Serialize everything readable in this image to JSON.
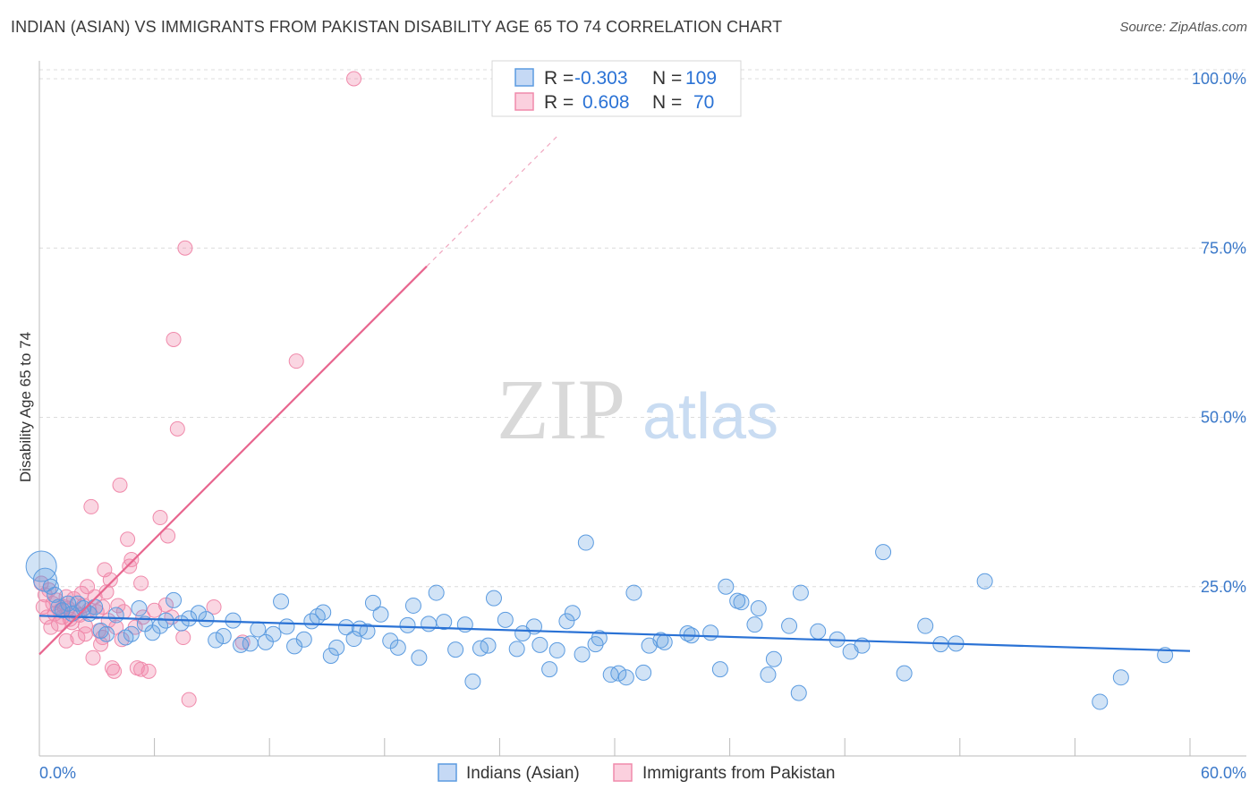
{
  "title": "INDIAN (ASIAN) VS IMMIGRANTS FROM PAKISTAN DISABILITY AGE 65 TO 74 CORRELATION CHART",
  "source": "Source: ZipAtlas.com",
  "watermark": {
    "zip": "ZIP",
    "atlas": "atlas"
  },
  "colors": {
    "blue": "#5b9be0",
    "blue_line": "#2a72d5",
    "pink": "#f08aab",
    "pink_line": "#e8668f",
    "axis_text": "#3a78c9"
  },
  "legend": {
    "rows": [
      {
        "r_label": "R = ",
        "r_value": "-0.303",
        "n_label": "N = ",
        "n_value": "109"
      },
      {
        "r_label": "R = ",
        "r_value": "0.608",
        "n_label": "N = ",
        "n_value": "70"
      }
    ]
  },
  "chart_data": {
    "type": "scatter",
    "title": "INDIAN (ASIAN) VS IMMIGRANTS FROM PAKISTAN DISABILITY AGE 65 TO 74 CORRELATION CHART",
    "xlabel": "",
    "ylabel": "Disability Age 65 to 74",
    "xlim": [
      0,
      60
    ],
    "ylim": [
      0,
      100
    ],
    "x_tick_labels": [
      "0.0%",
      "60.0%"
    ],
    "y_ticks": [
      25,
      50,
      75,
      100
    ],
    "y_tick_labels": [
      "25.0%",
      "50.0%",
      "75.0%",
      "100.0%"
    ],
    "grid": true,
    "series": [
      {
        "name": "Indians (Asian)",
        "color": "#5b9be0",
        "r": -0.303,
        "n": 109,
        "trend": {
          "x0": 0,
          "y0": 20.7,
          "x1": 60,
          "y1": 15.5
        },
        "points": [
          [
            0.1,
            28.0
          ],
          [
            0.3,
            26.0
          ],
          [
            0.6,
            25.0
          ],
          [
            0.8,
            23.8
          ],
          [
            1.0,
            22.0
          ],
          [
            1.2,
            21.5
          ],
          [
            1.5,
            22.5
          ],
          [
            1.7,
            21.0
          ],
          [
            2.0,
            22.5
          ],
          [
            2.3,
            21.8
          ],
          [
            2.6,
            21.0
          ],
          [
            2.9,
            22.0
          ],
          [
            3.2,
            18.5
          ],
          [
            3.5,
            18.0
          ],
          [
            4.0,
            20.8
          ],
          [
            4.5,
            17.5
          ],
          [
            4.8,
            18.0
          ],
          [
            5.2,
            21.8
          ],
          [
            5.5,
            19.5
          ],
          [
            5.9,
            18.2
          ],
          [
            6.3,
            19.2
          ],
          [
            6.6,
            20.0
          ],
          [
            7.0,
            23.0
          ],
          [
            7.4,
            19.6
          ],
          [
            7.8,
            20.3
          ],
          [
            8.3,
            21.1
          ],
          [
            8.7,
            20.2
          ],
          [
            9.2,
            17.1
          ],
          [
            9.6,
            17.7
          ],
          [
            10.1,
            20.0
          ],
          [
            10.5,
            16.4
          ],
          [
            11.0,
            16.6
          ],
          [
            11.4,
            18.7
          ],
          [
            11.8,
            16.8
          ],
          [
            12.2,
            18.0
          ],
          [
            12.6,
            22.8
          ],
          [
            12.9,
            19.1
          ],
          [
            13.3,
            16.2
          ],
          [
            13.8,
            17.2
          ],
          [
            14.2,
            19.9
          ],
          [
            14.5,
            20.6
          ],
          [
            14.8,
            21.2
          ],
          [
            15.2,
            14.8
          ],
          [
            15.5,
            16.0
          ],
          [
            16.0,
            19.0
          ],
          [
            16.4,
            17.3
          ],
          [
            16.7,
            18.8
          ],
          [
            17.1,
            18.4
          ],
          [
            17.4,
            22.6
          ],
          [
            17.8,
            20.9
          ],
          [
            18.3,
            17.0
          ],
          [
            18.7,
            16.0
          ],
          [
            19.2,
            19.3
          ],
          [
            19.5,
            22.2
          ],
          [
            19.8,
            14.5
          ],
          [
            20.3,
            19.5
          ],
          [
            20.7,
            24.1
          ],
          [
            21.1,
            19.8
          ],
          [
            21.7,
            15.7
          ],
          [
            22.2,
            19.4
          ],
          [
            22.6,
            11.0
          ],
          [
            23.0,
            15.9
          ],
          [
            23.4,
            16.3
          ],
          [
            23.7,
            23.3
          ],
          [
            24.3,
            20.1
          ],
          [
            24.9,
            15.8
          ],
          [
            25.2,
            18.1
          ],
          [
            25.8,
            19.1
          ],
          [
            26.1,
            16.4
          ],
          [
            26.6,
            12.8
          ],
          [
            27.0,
            15.6
          ],
          [
            27.5,
            19.9
          ],
          [
            27.8,
            21.1
          ],
          [
            28.3,
            15.0
          ],
          [
            28.5,
            31.5
          ],
          [
            29.0,
            16.5
          ],
          [
            29.2,
            17.4
          ],
          [
            29.8,
            12.0
          ],
          [
            30.2,
            12.2
          ],
          [
            30.6,
            11.6
          ],
          [
            31.0,
            24.1
          ],
          [
            31.5,
            12.3
          ],
          [
            31.8,
            16.3
          ],
          [
            32.4,
            17.1
          ],
          [
            32.6,
            16.8
          ],
          [
            33.8,
            18.1
          ],
          [
            34.0,
            17.8
          ],
          [
            35.0,
            18.2
          ],
          [
            35.5,
            12.8
          ],
          [
            35.8,
            25.0
          ],
          [
            36.4,
            22.9
          ],
          [
            36.6,
            22.7
          ],
          [
            37.3,
            19.4
          ],
          [
            37.5,
            21.8
          ],
          [
            38.0,
            12.0
          ],
          [
            38.3,
            14.3
          ],
          [
            39.1,
            19.2
          ],
          [
            39.6,
            9.3
          ],
          [
            39.7,
            24.1
          ],
          [
            40.6,
            18.4
          ],
          [
            41.6,
            17.2
          ],
          [
            42.3,
            15.4
          ],
          [
            42.9,
            16.3
          ],
          [
            44.0,
            30.1
          ],
          [
            45.1,
            12.2
          ],
          [
            46.2,
            19.2
          ],
          [
            47.0,
            16.5
          ],
          [
            47.8,
            16.6
          ],
          [
            49.3,
            25.8
          ],
          [
            55.3,
            8.0
          ],
          [
            56.4,
            11.6
          ],
          [
            58.7,
            14.9
          ]
        ]
      },
      {
        "name": "Immigrants from Pakistan",
        "color": "#f08aab",
        "r": 0.608,
        "n": 70,
        "trend": {
          "x0": 0,
          "y0": 15.0,
          "x1": 20.2,
          "y1": 72.3,
          "dash_x1": 27.0,
          "dash_y1": 91.5
        },
        "points": [
          [
            0.1,
            25.5
          ],
          [
            0.2,
            22.0
          ],
          [
            0.3,
            23.8
          ],
          [
            0.4,
            20.5
          ],
          [
            0.5,
            24.5
          ],
          [
            0.6,
            19.0
          ],
          [
            0.7,
            22.5
          ],
          [
            0.8,
            21.0
          ],
          [
            0.9,
            23.0
          ],
          [
            1.0,
            19.5
          ],
          [
            1.1,
            21.5
          ],
          [
            1.2,
            20.5
          ],
          [
            1.3,
            22.0
          ],
          [
            1.4,
            17.0
          ],
          [
            1.5,
            21.8
          ],
          [
            1.6,
            20.2
          ],
          [
            1.7,
            19.7
          ],
          [
            1.8,
            23.2
          ],
          [
            1.9,
            21.2
          ],
          [
            2.0,
            17.5
          ],
          [
            2.1,
            20.8
          ],
          [
            2.2,
            24.0
          ],
          [
            2.3,
            22.2
          ],
          [
            2.4,
            19.2
          ],
          [
            2.5,
            25.0
          ],
          [
            2.6,
            21.6
          ],
          [
            2.7,
            36.8
          ],
          [
            2.8,
            14.5
          ],
          [
            2.9,
            23.5
          ],
          [
            3.0,
            21.3
          ],
          [
            3.1,
            18.5
          ],
          [
            3.2,
            16.5
          ],
          [
            3.3,
            22.0
          ],
          [
            3.4,
            27.5
          ],
          [
            3.5,
            24.2
          ],
          [
            3.6,
            20.0
          ],
          [
            3.7,
            26.0
          ],
          [
            3.8,
            13.0
          ],
          [
            3.9,
            12.5
          ],
          [
            4.0,
            19.0
          ],
          [
            4.1,
            22.2
          ],
          [
            4.2,
            40.0
          ],
          [
            4.3,
            17.2
          ],
          [
            4.4,
            21.3
          ],
          [
            4.6,
            32.0
          ],
          [
            4.7,
            28.0
          ],
          [
            4.8,
            29.0
          ],
          [
            5.0,
            19.0
          ],
          [
            5.1,
            13.0
          ],
          [
            5.3,
            25.5
          ],
          [
            5.4,
            20.5
          ],
          [
            5.7,
            12.5
          ],
          [
            6.0,
            21.5
          ],
          [
            6.3,
            35.2
          ],
          [
            6.6,
            22.3
          ],
          [
            6.7,
            32.5
          ],
          [
            6.9,
            20.5
          ],
          [
            7.0,
            61.5
          ],
          [
            7.2,
            48.3
          ],
          [
            7.5,
            17.5
          ],
          [
            7.6,
            75.0
          ],
          [
            7.8,
            8.3
          ],
          [
            9.1,
            22.0
          ],
          [
            10.6,
            16.8
          ],
          [
            13.4,
            58.3
          ],
          [
            16.4,
            100.0
          ],
          [
            1.4,
            23.5
          ],
          [
            2.4,
            18.0
          ],
          [
            3.3,
            17.5
          ],
          [
            5.3,
            12.8
          ]
        ]
      }
    ]
  },
  "bottom_legend": [
    {
      "label": "Indians (Asian)"
    },
    {
      "label": "Immigrants from Pakistan"
    }
  ]
}
